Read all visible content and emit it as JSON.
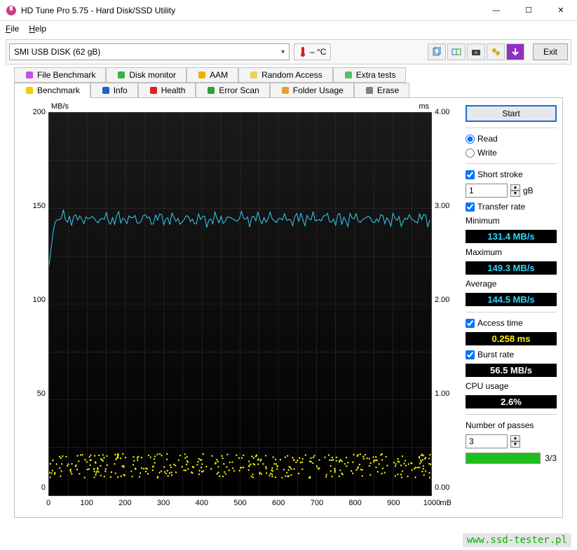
{
  "window": {
    "title": "HD Tune Pro 5.75 - Hard Disk/SSD Utility",
    "controls": {
      "min": "—",
      "max": "☐",
      "close": "✕"
    }
  },
  "menu": {
    "file": "File",
    "help": "Help"
  },
  "toolbar": {
    "device": "SMI    USB DISK (62 gB)",
    "temp_label": "–  °C",
    "exit": "Exit"
  },
  "tabs_top": [
    {
      "label": "File Benchmark",
      "icon": "#c050e0"
    },
    {
      "label": "Disk monitor",
      "icon": "#3cb043"
    },
    {
      "label": "AAM",
      "icon": "#f0b000"
    },
    {
      "label": "Random Access",
      "icon": "#f0d060"
    },
    {
      "label": "Extra tests",
      "icon": "#50c060"
    }
  ],
  "tabs_bottom": [
    {
      "label": "Benchmark",
      "icon": "#f0d000",
      "active": true
    },
    {
      "label": "Info",
      "icon": "#2060d0"
    },
    {
      "label": "Health",
      "icon": "#e02020"
    },
    {
      "label": "Error Scan",
      "icon": "#30a030"
    },
    {
      "label": "Folder Usage",
      "icon": "#e0a030"
    },
    {
      "label": "Erase",
      "icon": "#808080"
    }
  ],
  "chart": {
    "type": "line+scatter",
    "background_top": "#1a1a1a",
    "background_bottom": "#000000",
    "grid_color": "#353535",
    "y_left": {
      "unit": "MB/s",
      "min": 0,
      "max": 200,
      "ticks": [
        0,
        50,
        100,
        150,
        200
      ]
    },
    "y_right": {
      "unit": "ms",
      "min": 0,
      "max": 4,
      "ticks": [
        "0.00",
        "1.00",
        "2.00",
        "3.00",
        "4.00"
      ]
    },
    "x": {
      "min": 0,
      "max": 1000,
      "ticks": [
        0,
        100,
        200,
        300,
        400,
        500,
        600,
        700,
        800,
        900,
        1000
      ],
      "unit": "mB"
    },
    "transfer_line": {
      "color": "#38d0ff",
      "width": 1,
      "avg_y": 144.5,
      "jitter": 3
    },
    "access_scatter": {
      "color": "#f5f500",
      "size": 1.2,
      "y_center_ms": 0.258,
      "y_spread_ms": 0.25,
      "count": 400
    }
  },
  "side": {
    "start": "Start",
    "read": "Read",
    "write": "Write",
    "short_stroke": "Short stroke",
    "short_stroke_val": "1",
    "short_stroke_unit": "gB",
    "transfer_rate": "Transfer rate",
    "minimum_lbl": "Minimum",
    "minimum_val": "131.4 MB/s",
    "maximum_lbl": "Maximum",
    "maximum_val": "149.3 MB/s",
    "average_lbl": "Average",
    "average_val": "144.5 MB/s",
    "access_lbl": "Access time",
    "access_val": "0.258 ms",
    "burst_lbl": "Burst rate",
    "burst_val": "56.5 MB/s",
    "cpu_lbl": "CPU usage",
    "cpu_val": "2.6%",
    "passes_lbl": "Number of passes",
    "passes_val": "3",
    "progress": "3/3",
    "progress_pct": 100
  },
  "watermark": "www.ssd-tester.pl"
}
